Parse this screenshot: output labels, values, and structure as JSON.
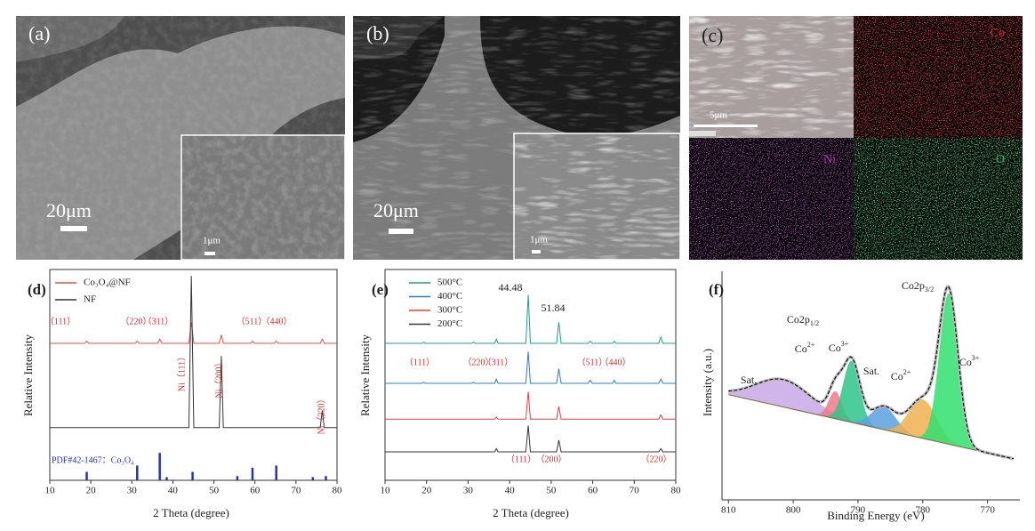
{
  "figure": {
    "images": [
      {
        "label": "(a)",
        "scale_bar": "20μm",
        "inset_scale_bar": "1μm"
      },
      {
        "label": "(b)",
        "scale_bar": "20μm",
        "inset_scale_bar": "1μm"
      },
      {
        "label": "(c)",
        "scale_bar": "5μm",
        "maps": [
          "Co",
          "Ni",
          "O"
        ]
      }
    ]
  },
  "chart_data": [
    {
      "type": "line",
      "panel": "(d)",
      "x_label": "2 Theta (degree)",
      "y_label": "Relative Intensity",
      "xlim": [
        10,
        80
      ],
      "xticks": [
        10,
        20,
        30,
        40,
        50,
        60,
        70,
        80
      ],
      "ylim": [
        0,
        100
      ],
      "x": [
        10,
        18.5,
        19,
        19.5,
        30.8,
        31.3,
        31.8,
        36.3,
        36.8,
        37.3,
        43.9,
        44.5,
        45.1,
        51.3,
        51.8,
        52.3,
        58.9,
        59.4,
        59.9,
        64.7,
        65.2,
        65.7,
        75.9,
        76.4,
        76.9,
        80
      ],
      "series": [
        {
          "name": "Co₃O₄@NF",
          "color": "#e05050",
          "values": [
            65,
            65,
            66,
            65,
            65,
            66,
            65,
            65,
            67,
            65,
            65,
            75,
            65,
            65,
            69,
            65,
            65,
            66,
            65,
            65,
            66,
            65,
            65,
            67,
            65,
            65
          ]
        },
        {
          "name": "NF",
          "color": "#333333",
          "values": [
            25,
            25,
            25,
            25,
            25,
            25,
            25,
            25,
            25,
            25,
            25,
            97,
            25,
            25,
            59,
            25,
            25,
            25,
            25,
            25,
            25,
            25,
            25,
            33,
            25,
            25
          ]
        }
      ],
      "reference": {
        "name": "PDF#42-1467：Co₃O₄",
        "color": "#2233bb",
        "x": [
          19,
          31.3,
          36.8,
          38.5,
          44.8,
          55.7,
          59.4,
          65.2,
          74.1,
          77.3
        ],
        "values": [
          4,
          7,
          13,
          1.5,
          4,
          2,
          6,
          7,
          1.5,
          2
        ]
      },
      "annotations": [
        "（111）",
        "（220）",
        "（311）",
        "（511）",
        "（440）",
        "Ni（111）",
        "Ni（200）",
        "Ni（220）"
      ]
    },
    {
      "type": "line",
      "panel": "(e)",
      "x_label": "2 Theta (degree)",
      "y_label": "Relative Intensity",
      "xlim": [
        10,
        80
      ],
      "xticks": [
        10,
        20,
        30,
        40,
        50,
        60,
        70,
        80
      ],
      "ylim": [
        0,
        100
      ],
      "x": [
        10,
        18.9,
        19.3,
        19.7,
        30.9,
        31.3,
        31.7,
        36.4,
        36.8,
        37.2,
        43.9,
        44.48,
        45.0,
        51.3,
        51.84,
        52.4,
        58.9,
        59.4,
        59.9,
        64.8,
        65.2,
        65.6,
        75.9,
        76.4,
        76.9,
        80
      ],
      "series": [
        {
          "name": "500°C",
          "color": "#20a080",
          "values": [
            65,
            65,
            65.5,
            65,
            65,
            65.5,
            65,
            65,
            67,
            65,
            65,
            88,
            65,
            65,
            75,
            65,
            65,
            66,
            65,
            65,
            66,
            65,
            65,
            68,
            65,
            65
          ]
        },
        {
          "name": "400°C",
          "color": "#2e7bd0",
          "values": [
            46,
            46,
            46.5,
            46,
            46,
            46.5,
            46,
            46,
            48,
            46,
            46,
            61,
            46,
            46,
            53,
            46,
            46,
            47.5,
            46,
            46,
            47.5,
            46,
            46,
            48,
            46,
            46
          ]
        },
        {
          "name": "300°C",
          "color": "#e04040",
          "values": [
            29,
            29,
            29,
            29,
            29,
            29,
            29,
            29,
            30,
            29,
            29,
            42,
            29,
            29,
            35,
            29,
            29,
            29,
            29,
            29,
            29,
            29,
            29,
            31,
            29,
            29
          ]
        },
        {
          "name": "200°C",
          "color": "#333333",
          "values": [
            13.5,
            13.5,
            13.5,
            13.5,
            13.5,
            13.5,
            13.5,
            13.5,
            15,
            13.5,
            13.5,
            26,
            13.5,
            13.5,
            19,
            13.5,
            13.5,
            13.5,
            13.5,
            13.5,
            13.5,
            13.5,
            13.5,
            15,
            13.5,
            13.5
          ]
        }
      ],
      "annotations": [
        "44.48",
        "51.84",
        "（111）",
        "（220）",
        "（311）",
        "（511）",
        "（440）",
        "（111）",
        "（200）",
        "（220）"
      ]
    },
    {
      "type": "area",
      "panel": "(f)",
      "x_label": "Binding Energy (eV)",
      "y_label": "Intensity (a.u.)",
      "xlim": [
        811,
        765
      ],
      "xticks": [
        810,
        800,
        790,
        780,
        770
      ],
      "ylim": [
        0,
        100
      ],
      "background": {
        "x": [
          810,
          766
        ],
        "values": [
          46,
          18
        ]
      },
      "components": [
        {
          "center": 801.5,
          "height": 12,
          "fwhm": 10,
          "color": "#c8a8e8"
        },
        {
          "center": 793.5,
          "height": 12,
          "fwhm": 2.4,
          "color": "#f07a8a"
        },
        {
          "center": 791,
          "height": 27,
          "fwhm": 3,
          "color": "#2ec48a"
        },
        {
          "center": 786,
          "height": 10,
          "fwhm": 4.5,
          "color": "#5aa0e0"
        },
        {
          "center": 780,
          "height": 17,
          "fwhm": 5,
          "color": "#f0b050"
        },
        {
          "center": 776,
          "height": 66,
          "fwhm": 3.4,
          "color": "#30e070"
        }
      ],
      "peak_labels": [
        {
          "text": "Co2p",
          "sub": "3/2"
        },
        {
          "text": "Co2p",
          "sub": "1/2"
        },
        {
          "text": "Co",
          "sup": "2+"
        },
        {
          "text": "Co",
          "sup": "3+"
        },
        {
          "text": "Co",
          "sup": "2+"
        },
        {
          "text": "Co",
          "sup": "3+"
        },
        {
          "text": "Sat."
        },
        {
          "text": "Sat."
        }
      ]
    }
  ]
}
